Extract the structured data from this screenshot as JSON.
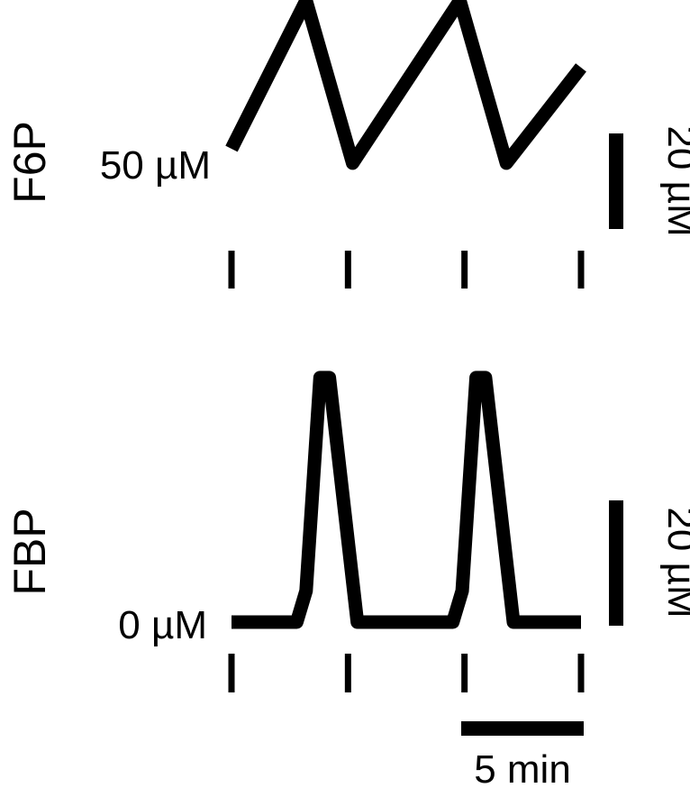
{
  "chart_data": [
    {
      "type": "line",
      "ylabel": "F6P",
      "baseline_label": "50 µM",
      "baseline_value": 50,
      "scale_bar": {
        "value": 20,
        "label": "20 µM"
      },
      "x_unit": "min",
      "x_ticks": [
        0,
        5,
        10,
        15
      ],
      "x": [
        0,
        3.2,
        5.2,
        9.8,
        11.8,
        15.0
      ],
      "y": [
        50,
        81,
        47,
        81,
        47,
        67
      ]
    },
    {
      "type": "line",
      "ylabel": "FBP",
      "baseline_label": "0 µM",
      "baseline_value": 0,
      "scale_bar": {
        "value": 20,
        "label": "20 µM"
      },
      "x_unit": "min",
      "x_ticks": [
        0,
        5,
        10,
        15
      ],
      "x": [
        0,
        2.8,
        3.2,
        3.8,
        4.2,
        5.4,
        9.5,
        9.9,
        10.5,
        10.9,
        12.1,
        15.0
      ],
      "y": [
        0,
        0,
        5,
        39,
        39,
        0,
        0,
        5,
        39,
        39,
        0,
        0
      ]
    }
  ],
  "time_scale_bar": {
    "value": 5,
    "label": "5 min"
  }
}
